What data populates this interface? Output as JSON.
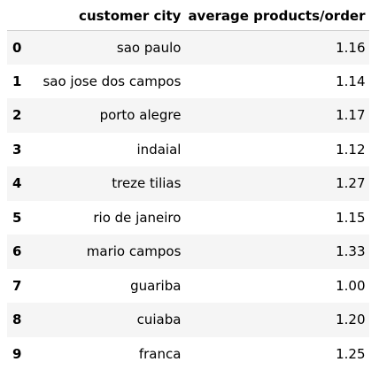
{
  "table": {
    "columns": [
      "customer city",
      "average products/order"
    ],
    "rows": [
      {
        "index": "0",
        "city": "sao paulo",
        "avg": "1.16"
      },
      {
        "index": "1",
        "city": "sao jose dos campos",
        "avg": "1.14"
      },
      {
        "index": "2",
        "city": "porto alegre",
        "avg": "1.17"
      },
      {
        "index": "3",
        "city": "indaial",
        "avg": "1.12"
      },
      {
        "index": "4",
        "city": "treze tilias",
        "avg": "1.27"
      },
      {
        "index": "5",
        "city": "rio de janeiro",
        "avg": "1.15"
      },
      {
        "index": "6",
        "city": "mario campos",
        "avg": "1.33"
      },
      {
        "index": "7",
        "city": "guariba",
        "avg": "1.00"
      },
      {
        "index": "8",
        "city": "cuiaba",
        "avg": "1.20"
      },
      {
        "index": "9",
        "city": "franca",
        "avg": "1.25"
      }
    ]
  }
}
